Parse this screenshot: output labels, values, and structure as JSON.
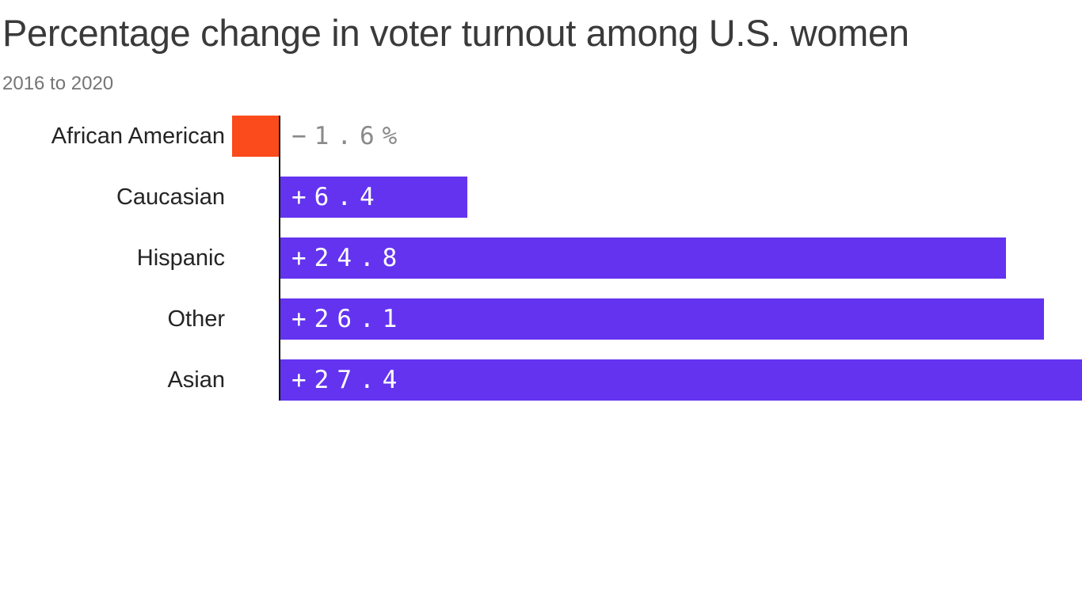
{
  "header": {
    "title": "Percentage change in voter turnout among U.S. women",
    "subtitle": "2016 to 2020"
  },
  "chart_data": {
    "type": "bar",
    "orientation": "horizontal",
    "title": "Percentage change in voter turnout among U.S. women",
    "subtitle": "2016 to 2020",
    "categories": [
      "African American",
      "Caucasian",
      "Hispanic",
      "Other",
      "Asian"
    ],
    "values": [
      -1.6,
      6.4,
      24.8,
      26.1,
      27.4
    ],
    "value_labels": [
      "−1.6%",
      "+6.4",
      "+24.8",
      "+26.1",
      "+27.4"
    ],
    "xlim": [
      -1.6,
      27.4
    ],
    "grid": false,
    "legend": "none",
    "colors": {
      "positive_bar": "#6333F0",
      "negative_bar": "#FB4A1B",
      "value_label_positive": "#FFFFFF",
      "value_label_negative": "#8A8A8A",
      "axis_line": "#141414",
      "category_label": "#242424",
      "title": "#3A3A3A",
      "subtitle": "#757575"
    }
  }
}
